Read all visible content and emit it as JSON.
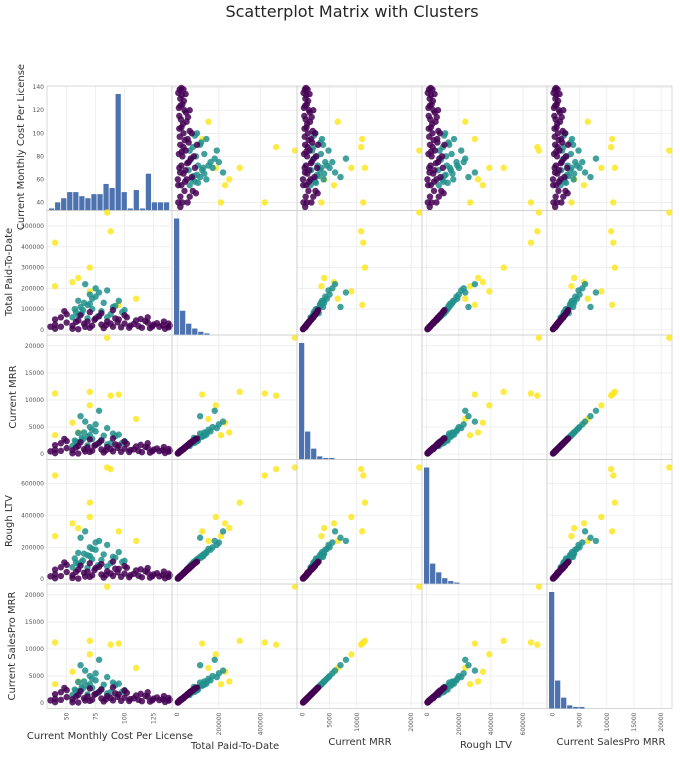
{
  "chart_data": {
    "type": "scatter",
    "title": "Scatterplot Matrix with Clusters",
    "variables": [
      "Current Monthly Cost Per License",
      "Total Paid-To-Date",
      "Current MRR",
      "Rough LTV",
      "Current SalesPro MRR"
    ],
    "axis_ranges": [
      [
        33,
        141
      ],
      [
        -25000,
        575000
      ],
      [
        -1000,
        22000
      ],
      [
        -30000,
        750000
      ],
      [
        -1000,
        22000
      ]
    ],
    "x_ticks": [
      [
        50,
        75,
        100,
        125
      ],
      [
        0,
        200000,
        400000
      ],
      [
        0,
        5000,
        10000,
        20000
      ],
      [
        0,
        200000,
        400000,
        600000
      ],
      [
        0,
        5000,
        10000,
        15000,
        20000
      ]
    ],
    "y_ticks": [
      [
        40,
        60,
        80,
        100,
        120,
        140
      ],
      [
        0,
        100000,
        200000,
        300000,
        400000,
        500000
      ],
      [
        0,
        5000,
        10000,
        15000,
        20000
      ],
      [
        0,
        200000,
        400000,
        600000
      ],
      [
        0,
        5000,
        10000,
        15000,
        20000
      ]
    ],
    "cluster_colors": [
      "#440154",
      "#21918c",
      "#fde725"
    ],
    "histograms": [
      [
        1,
        4,
        6,
        9,
        9,
        7,
        6,
        8,
        8,
        13,
        11,
        57,
        9,
        1,
        10,
        1,
        18,
        4,
        4,
        4
      ],
      [
        72,
        15,
        7,
        4,
        2,
        1,
        0,
        0,
        0,
        0,
        0,
        0,
        0,
        0,
        0,
        0,
        0,
        0,
        0,
        0
      ],
      [
        75,
        18,
        7,
        2,
        1,
        1,
        0,
        0,
        0,
        0,
        0,
        0,
        0,
        0,
        0,
        0,
        0,
        0,
        0,
        0
      ],
      [
        80,
        14,
        8,
        4,
        2,
        1,
        0,
        0,
        0,
        0,
        0,
        0,
        0,
        0,
        0,
        0,
        0,
        0,
        0,
        0
      ],
      [
        75,
        18,
        7,
        2,
        1,
        1,
        0,
        0,
        0,
        0,
        0,
        0,
        0,
        0,
        0,
        0,
        0,
        0,
        0,
        0
      ]
    ],
    "clusters": [
      {
        "cluster": 2,
        "points": [
          [
            85,
            575000,
            21500,
            700000,
            21500
          ],
          [
            40,
            420000,
            11200,
            650000,
            11200
          ],
          [
            88,
            475000,
            10800,
            690000,
            10800
          ],
          [
            70,
            300000,
            11500,
            480000,
            11500
          ],
          [
            55,
            230000,
            5800,
            350000,
            5800
          ],
          [
            70,
            185000,
            9000,
            390000,
            9000
          ],
          [
            95,
            120000,
            11000,
            300000,
            11000
          ],
          [
            110,
            150000,
            6500,
            240000,
            6500
          ],
          [
            60,
            250000,
            4000,
            320000,
            4000
          ],
          [
            40,
            210000,
            3500,
            270000,
            3500
          ]
        ]
      },
      {
        "cluster": 1,
        "points": [
          [
            57,
            100000,
            2500,
            130000,
            2500
          ],
          [
            63,
            80000,
            3000,
            110000,
            3000
          ],
          [
            72,
            150000,
            4500,
            190000,
            4500
          ],
          [
            68,
            120000,
            3200,
            150000,
            3200
          ],
          [
            85,
            60000,
            1800,
            80000,
            1800
          ],
          [
            90,
            110000,
            3800,
            140000,
            3800
          ],
          [
            60,
            70000,
            2200,
            95000,
            2200
          ],
          [
            75,
            200000,
            5500,
            230000,
            5500
          ],
          [
            80,
            90000,
            2600,
            120000,
            2600
          ],
          [
            65,
            130000,
            4000,
            160000,
            4000
          ],
          [
            100,
            95000,
            2400,
            115000,
            2400
          ],
          [
            55,
            60000,
            1500,
            75000,
            1500
          ],
          [
            70,
            170000,
            5000,
            200000,
            5000
          ],
          [
            95,
            140000,
            3600,
            170000,
            3600
          ],
          [
            62,
            110000,
            7000,
            260000,
            7000
          ],
          [
            78,
            180000,
            8000,
            240000,
            8000
          ],
          [
            66,
            220000,
            6000,
            300000,
            6000
          ],
          [
            88,
            75000,
            2000,
            100000,
            2000
          ],
          [
            72,
            100000,
            2800,
            125000,
            2800
          ],
          [
            58,
            85000,
            2300,
            105000,
            2300
          ],
          [
            82,
            130000,
            3400,
            155000,
            3400
          ],
          [
            75,
            160000,
            4200,
            185000,
            4200
          ],
          [
            64,
            95000,
            2700,
            118000,
            2700
          ],
          [
            92,
            115000,
            3300,
            135000,
            3300
          ],
          [
            68,
            55000,
            1600,
            72000,
            1600
          ],
          [
            85,
            190000,
            4800,
            215000,
            4800
          ],
          [
            60,
            140000,
            3900,
            165000,
            3900
          ],
          [
            77,
            65000,
            1900,
            88000,
            1900
          ],
          [
            70,
            125000,
            3500,
            145000,
            3500
          ],
          [
            98,
            85000,
            2100,
            108000,
            2100
          ]
        ]
      },
      {
        "cluster": 0,
        "points": [
          [
            40,
            25000,
            800,
            30000,
            800
          ],
          [
            45,
            15000,
            600,
            20000,
            600
          ],
          [
            50,
            35000,
            1100,
            45000,
            1100
          ],
          [
            55,
            20000,
            700,
            25000,
            700
          ],
          [
            60,
            45000,
            1500,
            60000,
            1500
          ],
          [
            65,
            30000,
            900,
            40000,
            900
          ],
          [
            70,
            10000,
            400,
            15000,
            400
          ],
          [
            75,
            55000,
            1700,
            70000,
            1700
          ],
          [
            80,
            25000,
            850,
            30000,
            850
          ],
          [
            85,
            40000,
            1300,
            50000,
            1300
          ],
          [
            90,
            15000,
            500,
            20000,
            500
          ],
          [
            95,
            50000,
            1600,
            65000,
            1600
          ],
          [
            100,
            30000,
            1000,
            35000,
            1000
          ],
          [
            105,
            20000,
            750,
            25000,
            750
          ],
          [
            110,
            45000,
            1400,
            55000,
            1400
          ],
          [
            115,
            10000,
            350,
            12000,
            350
          ],
          [
            120,
            35000,
            1200,
            42000,
            1200
          ],
          [
            125,
            25000,
            800,
            30000,
            800
          ],
          [
            130,
            15000,
            550,
            18000,
            550
          ],
          [
            135,
            5000,
            200,
            6000,
            200
          ],
          [
            45,
            60000,
            2000,
            75000,
            2000
          ],
          [
            55,
            5000,
            150,
            8000,
            150
          ],
          [
            62,
            70000,
            2200,
            85000,
            2200
          ],
          [
            68,
            40000,
            1250,
            48000,
            1250
          ],
          [
            72,
            20000,
            650,
            24000,
            650
          ],
          [
            78,
            65000,
            2100,
            78000,
            2100
          ],
          [
            82,
            8000,
            300,
            10000,
            300
          ],
          [
            88,
            30000,
            950,
            36000,
            950
          ],
          [
            92,
            55000,
            1800,
            66000,
            1800
          ],
          [
            97,
            12000,
            420,
            15000,
            420
          ],
          [
            102,
            60000,
            1900,
            72000,
            1900
          ],
          [
            108,
            28000,
            880,
            34000,
            880
          ],
          [
            112,
            18000,
            600,
            22000,
            600
          ],
          [
            118,
            42000,
            1350,
            50000,
            1350
          ],
          [
            122,
            8000,
            280,
            10000,
            280
          ],
          [
            128,
            32000,
            1050,
            38000,
            1050
          ],
          [
            133,
            22000,
            720,
            26000,
            720
          ],
          [
            138,
            12000,
            450,
            14000,
            450
          ],
          [
            40,
            50000,
            1650,
            60000,
            1650
          ],
          [
            50,
            75000,
            2400,
            90000,
            2400
          ],
          [
            58,
            38000,
            1200,
            45000,
            1200
          ],
          [
            66,
            14000,
            480,
            17000,
            480
          ],
          [
            74,
            48000,
            1550,
            57000,
            1550
          ],
          [
            84,
            22000,
            700,
            26000,
            700
          ],
          [
            94,
            36000,
            1150,
            43000,
            1150
          ],
          [
            104,
            10000,
            380,
            12000,
            380
          ],
          [
            114,
            52000,
            1700,
            62000,
            1700
          ],
          [
            124,
            16000,
            520,
            19000,
            520
          ],
          [
            134,
            40000,
            1300,
            48000,
            1300
          ],
          [
            60,
            3000,
            100,
            4000,
            100
          ],
          [
            80,
            80000,
            2500,
            95000,
            2500
          ],
          [
            100,
            70000,
            2300,
            82000,
            2300
          ],
          [
            120,
            60000,
            2000,
            70000,
            2000
          ],
          [
            140,
            20000,
            650,
            24000,
            650
          ],
          [
            48,
            90000,
            2800,
            105000,
            2800
          ],
          [
            70,
            85000,
            2700,
            100000,
            2700
          ],
          [
            90,
            95000,
            2900,
            110000,
            2900
          ],
          [
            40,
            5000,
            180,
            6000,
            180
          ],
          [
            36,
            15000,
            500,
            18000,
            500
          ],
          [
            138,
            30000,
            950,
            35000,
            950
          ]
        ]
      }
    ],
    "grid": true,
    "legend": "none"
  }
}
